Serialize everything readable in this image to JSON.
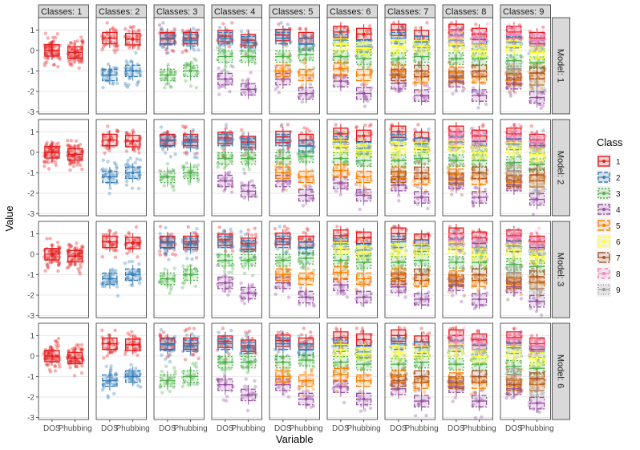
{
  "chart_data": {
    "type": "box-jitter-facet",
    "title": "",
    "xlabel": "Variable",
    "ylabel": "Value",
    "ylim": [
      -3.1,
      1.6
    ],
    "yticks": [
      1,
      0,
      -1,
      -2,
      -3
    ],
    "variables": [
      "DOS",
      "Phubbing"
    ],
    "column_facets": [
      "Classes: 1",
      "Classes: 2",
      "Classes: 3",
      "Classes: 4",
      "Classes: 5",
      "Classes: 6",
      "Classes: 7",
      "Classes: 8",
      "Classes: 9"
    ],
    "row_facets": [
      "Model: 1",
      "Model: 2",
      "Model: 3",
      "Model: 6"
    ],
    "legend": {
      "title": "Class",
      "position": "right",
      "entries": [
        {
          "label": "1",
          "color": "#e41a1c",
          "marker": "circle",
          "dash": ""
        },
        {
          "label": "2",
          "color": "#377eb8",
          "marker": "triangle",
          "dash": "5,2"
        },
        {
          "label": "3",
          "color": "#4daf4a",
          "marker": "square",
          "dash": "2,2"
        },
        {
          "label": "4",
          "color": "#984ea3",
          "marker": "plus",
          "dash": "6,2,2,2"
        },
        {
          "label": "5",
          "color": "#ff7f00",
          "marker": "square-filled",
          "dash": "8,3"
        },
        {
          "label": "6",
          "color": "#ffff33",
          "marker": "diamond",
          "dash": "2,1"
        },
        {
          "label": "7",
          "color": "#a65628",
          "marker": "dash",
          "dash": "9,2,2,2"
        },
        {
          "label": "8",
          "color": "#f781bf",
          "marker": "dash",
          "dash": "4,4"
        },
        {
          "label": "9",
          "color": "#999999",
          "marker": "dot",
          "dash": "1,2"
        }
      ]
    },
    "class_means_by_k": {
      "1": [
        [
          0.0,
          -0.1
        ]
      ],
      "2": [
        [
          0.6,
          0.55
        ],
        [
          -1.2,
          -1.0
        ]
      ],
      "3": [
        [
          0.6,
          0.6
        ],
        [
          0.55,
          0.5
        ],
        [
          -1.2,
          -1.0
        ]
      ],
      "4": [
        [
          0.7,
          0.5
        ],
        [
          0.6,
          0.4
        ],
        [
          -0.3,
          -0.3
        ],
        [
          -1.4,
          -1.9
        ]
      ],
      "5": [
        [
          0.75,
          0.6
        ],
        [
          0.6,
          0.3
        ],
        [
          -0.3,
          -0.2
        ],
        [
          -1.4,
          -2.1
        ],
        [
          -1.0,
          -1.2
        ]
      ],
      "6": [
        [
          0.9,
          0.8
        ],
        [
          0.5,
          0.2
        ],
        [
          -0.3,
          -0.4
        ],
        [
          -1.5,
          -2.1
        ],
        [
          -0.9,
          -1.2
        ],
        [
          0.3,
          0.1
        ]
      ],
      "7": [
        [
          1.0,
          0.7
        ],
        [
          0.6,
          0.4
        ],
        [
          -0.4,
          -0.3
        ],
        [
          -1.6,
          -2.2
        ],
        [
          -1.0,
          -1.3
        ],
        [
          0.2,
          0.2
        ],
        [
          -1.2,
          -1.0
        ]
      ],
      "8": [
        [
          1.0,
          0.8
        ],
        [
          0.5,
          0.3
        ],
        [
          -0.4,
          -0.4
        ],
        [
          -1.5,
          -2.2
        ],
        [
          -1.1,
          -1.3
        ],
        [
          0.3,
          0.0
        ],
        [
          -1.3,
          -1.0
        ],
        [
          0.7,
          0.6
        ]
      ],
      "9": [
        [
          0.9,
          0.6
        ],
        [
          0.4,
          0.2
        ],
        [
          -0.5,
          -0.6
        ],
        [
          -1.6,
          -2.3
        ],
        [
          -1.2,
          -1.4
        ],
        [
          0.2,
          -0.1
        ],
        [
          -1.4,
          -1.1
        ],
        [
          0.8,
          0.5
        ],
        [
          -0.9,
          -1.7
        ]
      ]
    }
  }
}
